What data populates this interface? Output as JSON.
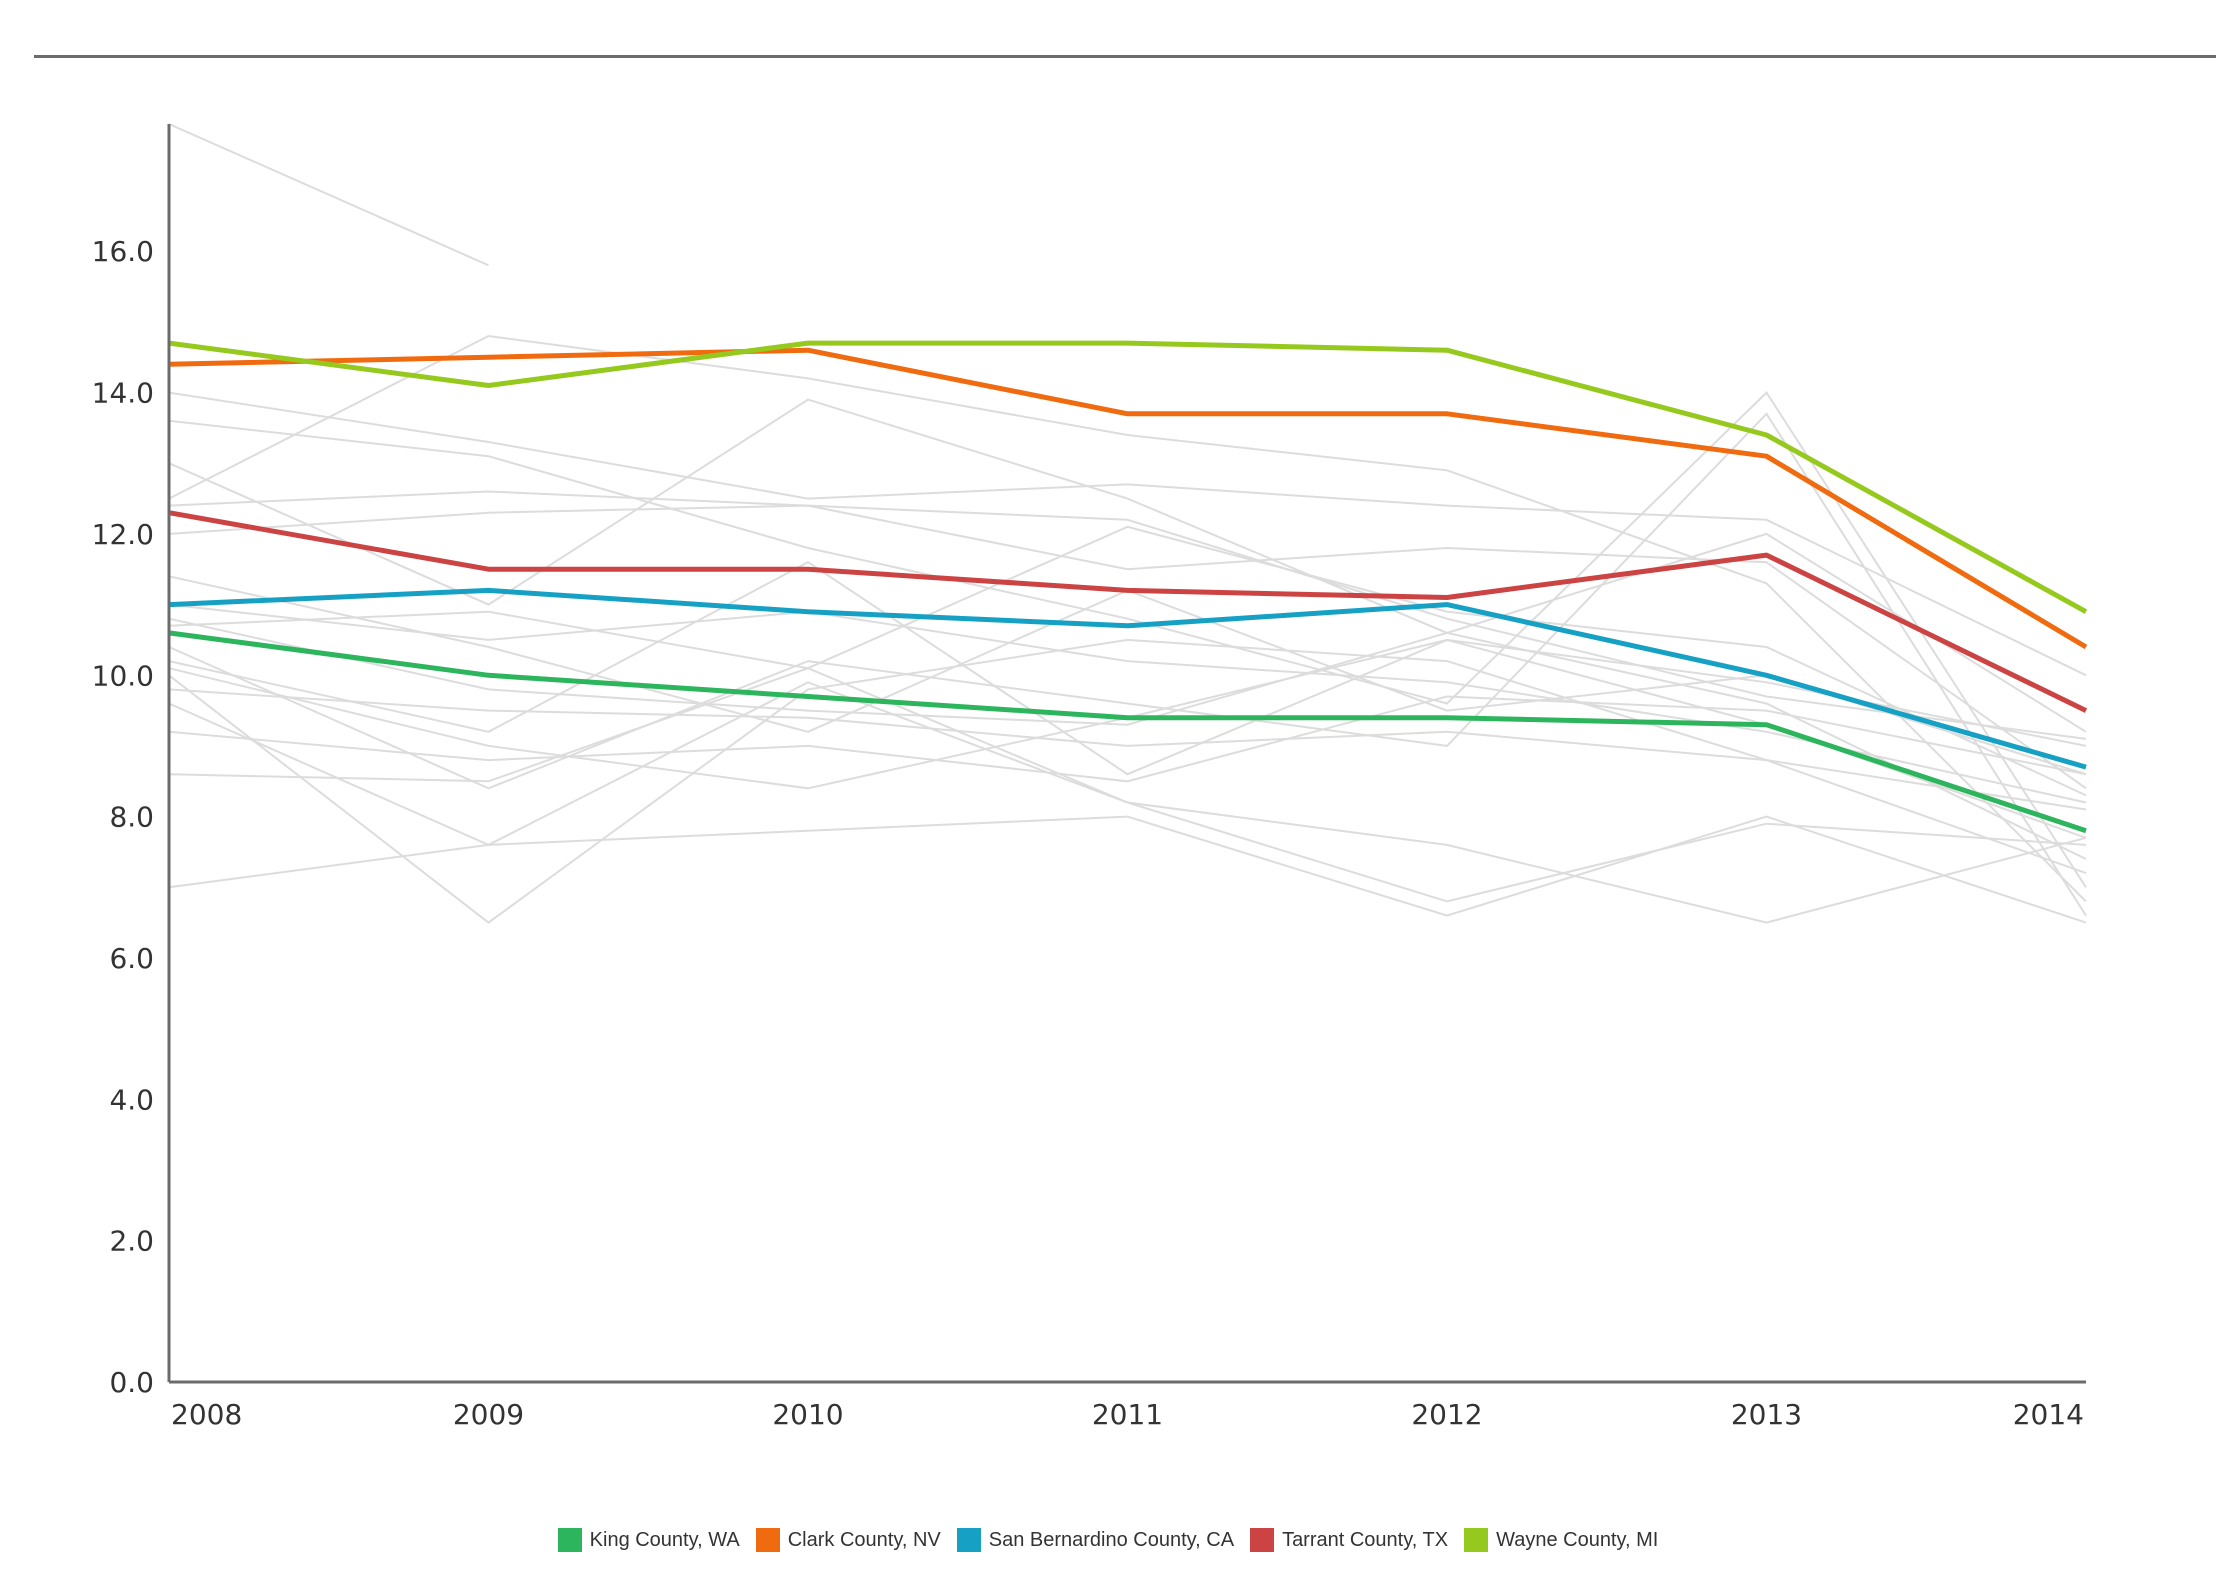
{
  "chart_data": {
    "type": "line",
    "x": [
      "2008",
      "2009",
      "2010",
      "2011",
      "2012",
      "2013",
      "2014"
    ],
    "ylim": [
      0,
      17.8
    ],
    "yticks": [
      "0.0",
      "2.0",
      "4.0",
      "6.0",
      "8.0",
      "10.0",
      "12.0",
      "14.0",
      "16.0"
    ],
    "grid": false,
    "legend_position": "bottom",
    "series": [
      {
        "name": "King County, WA",
        "color": "#2db55d",
        "values": [
          10.6,
          10.0,
          9.7,
          9.4,
          9.4,
          9.3,
          7.8
        ]
      },
      {
        "name": "Clark County, NV",
        "color": "#f06b0f",
        "values": [
          14.4,
          14.5,
          14.6,
          13.7,
          13.7,
          13.1,
          10.4
        ]
      },
      {
        "name": "San Bernardino County, CA",
        "color": "#16a1c4",
        "values": [
          11.0,
          11.2,
          10.9,
          10.7,
          11.0,
          10.0,
          8.7
        ]
      },
      {
        "name": "Tarrant County, TX",
        "color": "#cc4343",
        "values": [
          12.3,
          11.5,
          11.5,
          11.2,
          11.1,
          11.7,
          9.5
        ]
      },
      {
        "name": "Wayne County, MI",
        "color": "#95c91e",
        "values": [
          14.7,
          14.1,
          14.7,
          14.7,
          14.6,
          13.4,
          10.9
        ]
      }
    ],
    "background_series": {
      "color": "#dcdcdc",
      "lines": [
        [
          17.8,
          15.8
        ],
        [
          14.0,
          13.3,
          12.5,
          12.7,
          12.4,
          12.2,
          10.0
        ],
        [
          13.6,
          13.1,
          11.8,
          10.8,
          9.6,
          14.0,
          7.0
        ],
        [
          13.0,
          11.0,
          13.9,
          12.5,
          10.6,
          12.0,
          9.2
        ],
        [
          12.5,
          14.8,
          14.2,
          13.4,
          12.9,
          11.3,
          6.8
        ],
        [
          12.4,
          12.6,
          12.4,
          11.5,
          11.8,
          11.6,
          8.4
        ],
        [
          12.0,
          12.3,
          12.4,
          12.2,
          10.8,
          9.7,
          9.1
        ],
        [
          11.4,
          10.4,
          9.2,
          11.2,
          9.5,
          10.0,
          8.6
        ],
        [
          11.0,
          10.5,
          10.9,
          10.2,
          9.9,
          9.2,
          8.2
        ],
        [
          10.8,
          9.8,
          9.5,
          9.3,
          10.6,
          9.6,
          7.4
        ],
        [
          10.4,
          8.4,
          10.2,
          9.6,
          9.0,
          13.7,
          6.6
        ],
        [
          10.1,
          9.0,
          8.4,
          9.4,
          10.5,
          9.3,
          7.7
        ],
        [
          10.0,
          6.5,
          9.8,
          10.5,
          10.2,
          8.8,
          7.2
        ],
        [
          9.8,
          9.5,
          9.4,
          9.0,
          9.2,
          8.8,
          8.1
        ],
        [
          9.6,
          7.6,
          9.9,
          8.2,
          7.6,
          6.5,
          7.7
        ],
        [
          9.2,
          8.8,
          9.0,
          8.5,
          9.7,
          9.5,
          8.6
        ],
        [
          8.6,
          8.5,
          10.1,
          8.2,
          6.8,
          7.9,
          7.6
        ],
        [
          7.0,
          7.6,
          7.8,
          8.0,
          6.6,
          8.0,
          6.5
        ],
        [
          10.2,
          9.2,
          11.6,
          8.6,
          10.5,
          9.9,
          9.0
        ],
        [
          10.7,
          10.9,
          10.1,
          12.1,
          10.9,
          10.4,
          8.3
        ]
      ]
    }
  }
}
